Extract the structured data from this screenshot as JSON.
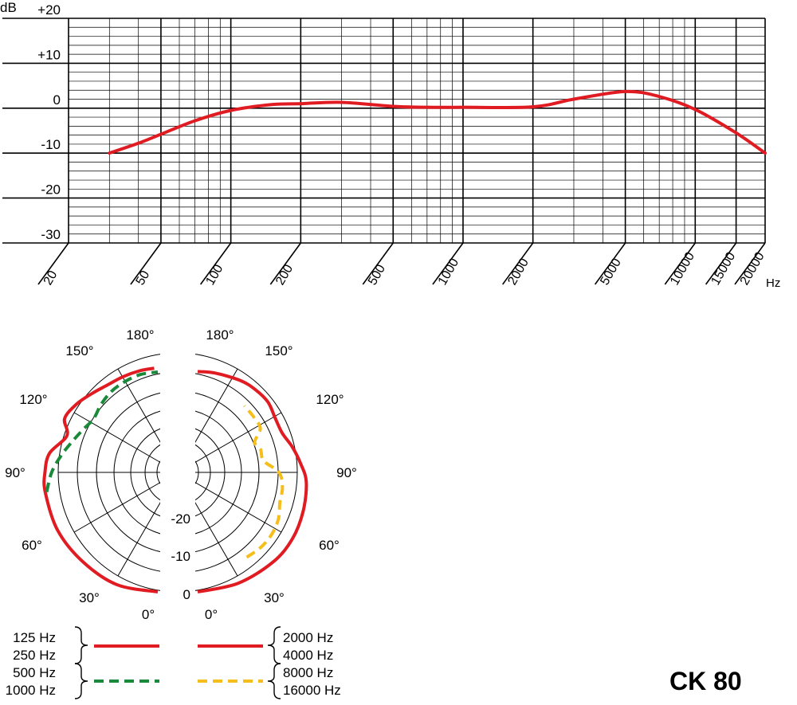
{
  "model_label": "CK 80",
  "colors": {
    "red": "#e11b22",
    "green": "#1a8a3a",
    "yellow": "#f5be1b",
    "grid": "#000000"
  },
  "chart_data": [
    {
      "type": "line",
      "xscale": "log",
      "xlabel": "Hz",
      "ylabel": "dB",
      "xlim": [
        20,
        20000
      ],
      "ylim": [
        -30,
        20
      ],
      "grid": true,
      "x_ticks": [
        "20",
        "50",
        "100",
        "200",
        "500",
        "1000",
        "2000",
        "5000",
        "10000",
        "15000",
        "20000"
      ],
      "y_ticks": [
        "+20",
        "+10",
        "0",
        "-10",
        "-20",
        "-30"
      ],
      "series": [
        {
          "color": "#e11b22",
          "x": [
            30,
            40,
            50,
            70,
            100,
            150,
            200,
            300,
            500,
            700,
            1000,
            2000,
            3000,
            5000,
            7000,
            10000,
            15000,
            20000
          ],
          "y": [
            -10,
            -7.8,
            -5.8,
            -2.8,
            -0.5,
            0.8,
            1,
            1.3,
            0.4,
            0.2,
            0.2,
            0.3,
            2,
            3.7,
            2.6,
            -0.3,
            -5.5,
            -10
          ]
        }
      ]
    },
    {
      "type": "polar",
      "angle_labels_left": [
        "180°",
        "150°",
        "120°",
        "90°",
        "60°",
        "30°",
        "0°"
      ],
      "angle_labels_right": [
        "180°",
        "150°",
        "120°",
        "90°",
        "60°",
        "30°",
        "0°"
      ],
      "radial_labels": [
        "-20",
        "-10",
        "0"
      ],
      "legend_left": [
        "125 Hz",
        "250 Hz",
        "500 Hz",
        "1000 Hz"
      ],
      "legend_right": [
        "2000 Hz",
        "4000 Hz",
        "8000 Hz",
        "16000 Hz"
      ],
      "series": [
        {
          "name": "125 Hz / 250 Hz",
          "side": "left",
          "color": "#e11b22",
          "dash": "solid",
          "angles": [
            0,
            20,
            40,
            60,
            80,
            90,
            100,
            112,
            120,
            130,
            140,
            150,
            160,
            170,
            178
          ],
          "db": [
            0,
            0,
            -0.6,
            -0.8,
            -1.1,
            -1.4,
            -2,
            -4.5,
            -2.5,
            -2.8,
            -3.5,
            -3.9,
            -3.7,
            -3.4,
            -3.2
          ]
        },
        {
          "name": "500 Hz / 1000 Hz",
          "side": "left",
          "color": "#1a8a3a",
          "dash": "dashed",
          "angles": [
            80,
            90,
            100,
            110,
            120,
            130,
            140,
            150,
            160,
            170,
            180
          ],
          "db": [
            -1.4,
            -2.8,
            -4.5,
            -6,
            -7,
            -7.5,
            -6.5,
            -5.5,
            -4.8,
            -4.2,
            -4
          ]
        },
        {
          "name": "2000 Hz / 4000 Hz",
          "side": "right",
          "color": "#e11b22",
          "dash": "solid",
          "angles": [
            0,
            20,
            40,
            55,
            70,
            85,
            95,
            105,
            115,
            125,
            135,
            145,
            155,
            170,
            180
          ],
          "db": [
            0,
            -0.3,
            -0.5,
            -0.8,
            -1.5,
            -2.2,
            -3.4,
            -4.5,
            -5.5,
            -5.2,
            -4.2,
            -3.9,
            -3.8,
            -3.9,
            -3.9
          ]
        },
        {
          "name": "8000 Hz / 16000 Hz",
          "side": "right",
          "color": "#f5be1b",
          "dash": "dashed",
          "angles": [
            30,
            40,
            50,
            60,
            70,
            80,
            90,
            100,
            110,
            118,
            125,
            135,
            145
          ],
          "db": [
            -4.5,
            -4.5,
            -4.8,
            -5.5,
            -6.7,
            -7,
            -8,
            -11,
            -11,
            -11.5,
            -9,
            -8.5,
            -8
          ]
        }
      ]
    }
  ]
}
